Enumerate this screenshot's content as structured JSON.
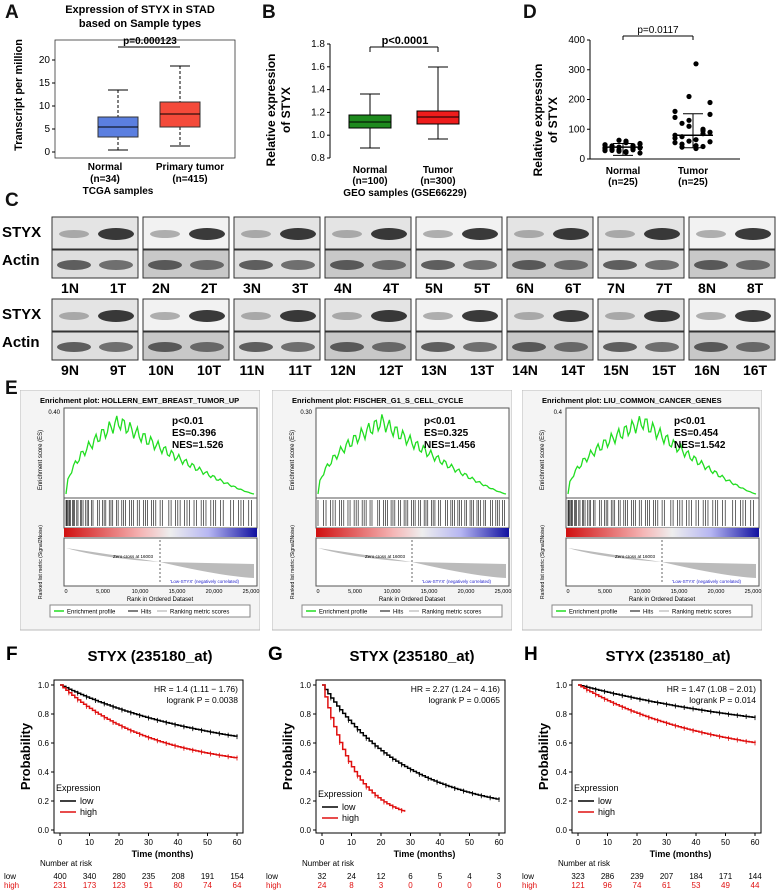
{
  "panels": {
    "A": {
      "letter": "A",
      "title_line1": "Expression of STYX in STAD",
      "title_line2": "based on Sample types",
      "ylabel": "Transcript per million",
      "pvalue": "p=0.000123",
      "yticks": [
        "0",
        "5",
        "10",
        "15",
        "20"
      ],
      "groups": [
        {
          "name": "Normal",
          "n": "(n=34)",
          "color": "#5b7fe0"
        },
        {
          "name": "Primary tumor",
          "n": "(n=415)",
          "color": "#f44a3a"
        }
      ],
      "xlabel": "TCGA  samples"
    },
    "B": {
      "letter": "B",
      "ylabel": "Relative expression",
      "ylabel2": "of STYX",
      "pvalue": "p<0.0001",
      "yticks": [
        "0.8",
        "1.0",
        "1.2",
        "1.4",
        "1.6",
        "1.8"
      ],
      "groups": [
        {
          "name": "Normal",
          "n": "(n=100)",
          "color": "#1e8a1e"
        },
        {
          "name": "Tumor",
          "n": "(n=300)",
          "color": "#ee1c1c"
        }
      ],
      "xlabel": "GEO samples (GSE66229)"
    },
    "C": {
      "letter": "C",
      "row1": "STYX",
      "row2": "Actin",
      "lanes_top": [
        "1N",
        "1T",
        "2N",
        "2T",
        "3N",
        "3T",
        "4N",
        "4T",
        "5N",
        "5T",
        "6N",
        "6T",
        "7N",
        "7T",
        "8N",
        "8T"
      ],
      "lanes_bottom": [
        "9N",
        "9T",
        "10N",
        "10T",
        "11N",
        "11T",
        "12N",
        "12T",
        "13N",
        "13T",
        "14N",
        "14T",
        "15N",
        "15T",
        "16N",
        "16T"
      ]
    },
    "D": {
      "letter": "D",
      "ylabel": "Relative expression",
      "ylabel2": "of STYX",
      "pvalue": "p=0.0117",
      "yticks": [
        "0",
        "100",
        "200",
        "300",
        "400"
      ],
      "groups": [
        {
          "name": "Normal",
          "n": "(n=25)"
        },
        {
          "name": "Tumor",
          "n": "(n=25)"
        }
      ]
    },
    "E": {
      "letter": "E",
      "plots": [
        {
          "title": "Enrichment plot: HOLLERN_EMT_BREAST_TUMOR_UP",
          "p": "p<0.01",
          "es": "ES=0.396",
          "nes": "NES=1.526",
          "ymax_label": "0.40"
        },
        {
          "title": "Enrichment plot: FISCHER_G1_S_CELL_CYCLE",
          "p": "p<0.01",
          "es": "ES=0.325",
          "nes": "NES=1.456",
          "ymax_label": "0.30"
        },
        {
          "title": "Enrichment plot: LIU_COMMON_CANCER_GENES",
          "p": "p<0.01",
          "es": "ES=0.454",
          "nes": "NES=1.542",
          "ymax_label": "0.4"
        }
      ],
      "ylabel_es": "Enrichment score (ES)",
      "ylabel_rank": "Ranked list metric (Signal2Noise)",
      "xlabel": "Rank in Ordered Dataset",
      "high_label": "'High-STYX' (positively correlated)",
      "low_label": "'Low-STYX' (negatively correlated)",
      "zero_cross": "Zero cross at 16003",
      "xticks": [
        "0",
        "5,000",
        "10,000",
        "15,000",
        "20,000",
        "25,000"
      ],
      "legend": [
        "Enrichment profile",
        "Hits",
        "Ranking metric scores"
      ]
    },
    "KM": {
      "ylabel": "Probability",
      "xlabel": "Time (months)",
      "legend_title": "Expression",
      "legend_low": "low",
      "legend_high": "high",
      "risk_title": "Number at risk",
      "plots": [
        {
          "letter": "F",
          "title": "STYX (235180_at)",
          "hr": "HR = 1.4 (1.11 − 1.76)",
          "logrank": "logrank P = 0.0038",
          "xticks": [
            "0",
            "10",
            "20",
            "30",
            "40",
            "50",
            "60"
          ],
          "risk_low": [
            "400",
            "340",
            "280",
            "235",
            "208",
            "191",
            "154"
          ],
          "risk_high": [
            "231",
            "173",
            "123",
            "91",
            "80",
            "74",
            "64"
          ]
        },
        {
          "letter": "G",
          "title": "STYX (235180_at)",
          "hr": "HR = 2.27 (1.24 − 4.16)",
          "logrank": "logrank P = 0.0065",
          "xticks": [
            "0",
            "10",
            "20",
            "30",
            "40",
            "50",
            "60"
          ],
          "risk_low": [
            "32",
            "24",
            "12",
            "6",
            "5",
            "4",
            "3"
          ],
          "risk_high": [
            "24",
            "8",
            "3",
            "0",
            "0",
            "0",
            "0"
          ]
        },
        {
          "letter": "H",
          "title": "STYX (235180_at)",
          "hr": "HR = 1.47 (1.08 − 2.01)",
          "logrank": "logrank P = 0.014",
          "xticks": [
            "0",
            "10",
            "20",
            "30",
            "40",
            "50",
            "60"
          ],
          "risk_low": [
            "323",
            "286",
            "239",
            "207",
            "184",
            "171",
            "144"
          ],
          "risk_high": [
            "121",
            "96",
            "74",
            "61",
            "53",
            "49",
            "44"
          ]
        }
      ],
      "yticks": [
        "0.0",
        "0.2",
        "0.4",
        "0.6",
        "0.8",
        "1.0"
      ],
      "row_low": "low",
      "row_high": "high"
    }
  },
  "colors": {
    "low": "#000000",
    "high": "#e01010",
    "es_curve": "#22dd22"
  }
}
